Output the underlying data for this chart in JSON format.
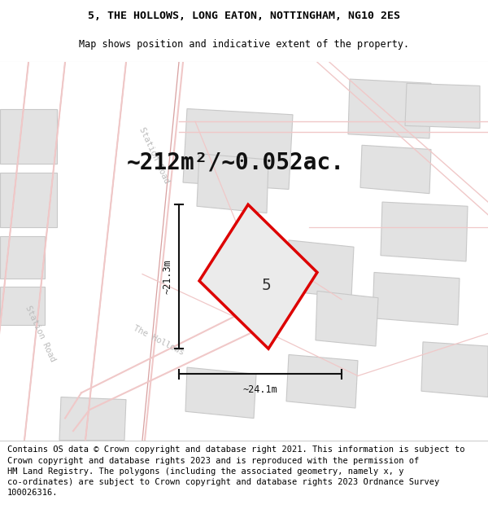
{
  "title": "5, THE HOLLOWS, LONG EATON, NOTTINGHAM, NG10 2ES",
  "subtitle": "Map shows position and indicative extent of the property.",
  "area_text": "~212m²/~0.052ac.",
  "dim_vertical": "~21.3m",
  "dim_horizontal": "~24.1m",
  "property_number": "5",
  "footer": "Contains OS data © Crown copyright and database right 2021. This information is subject to\nCrown copyright and database rights 2023 and is reproduced with the permission of\nHM Land Registry. The polygons (including the associated geometry, namely x, y\nco-ordinates) are subject to Crown copyright and database rights 2023 Ordnance Survey\n100026316.",
  "bg_color": "#f7f7f7",
  "road_color": "#f0c8c8",
  "road_edge": "#d8a0a0",
  "building_color": "#e2e2e2",
  "building_edge": "#c8c8c8",
  "property_fill": "#ebebeb",
  "property_edge": "#dd0000",
  "dim_line_color": "#111111",
  "road_text_color": "#bbbbbb",
  "title_fontsize": 9.5,
  "subtitle_fontsize": 8.5,
  "area_fontsize": 20,
  "label_fontsize": 14,
  "footer_fontsize": 7.5,
  "dim_fontsize": 8.5
}
